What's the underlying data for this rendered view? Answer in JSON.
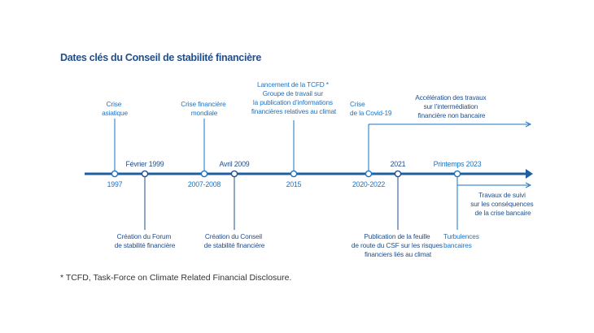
{
  "title": "Dates clés du Conseil de stabilité financière",
  "footnote": "* TCFD, Task-Force on Climate Related Financial Disclosure.",
  "colors": {
    "axis": "#1f5fa0",
    "light": "#1a73c6",
    "dark": "#1f4e8c"
  },
  "milestones": {
    "m1997": {
      "date": "1997",
      "event": [
        "Crise",
        "asiatique"
      ]
    },
    "m1999": {
      "date": "Février 1999",
      "event": [
        "Création du Forum",
        "de stabilité financière"
      ]
    },
    "m2007": {
      "date": "2007-2008",
      "event": [
        "Crise financière",
        "mondiale"
      ]
    },
    "m2009": {
      "date": "Avril 2009",
      "event": [
        "Création du Conseil",
        "de stabilité financière"
      ]
    },
    "m2015": {
      "date": "2015",
      "event": [
        "Lancement de la TCFD *",
        "Groupe de travail sur",
        "la publication d’informations",
        "financières relatives au climat"
      ]
    },
    "m2020": {
      "date": "2020-2022",
      "event": [
        "Crise",
        "de la Covid-19"
      ],
      "branch": [
        "Accélération des travaux",
        "sur l’intermédiation",
        "financière non bancaire"
      ]
    },
    "m2021": {
      "date": "2021",
      "event": [
        "Publication de la feuille",
        "de route du CSF sur les risques",
        "financiers liés au climat"
      ]
    },
    "m2023": {
      "date": "Printemps 2023",
      "event": [
        "Turbulences",
        "bancaires"
      ],
      "branch": [
        "Travaux de suivi",
        "sur les conséquences",
        "de la crise bancaire"
      ]
    }
  }
}
